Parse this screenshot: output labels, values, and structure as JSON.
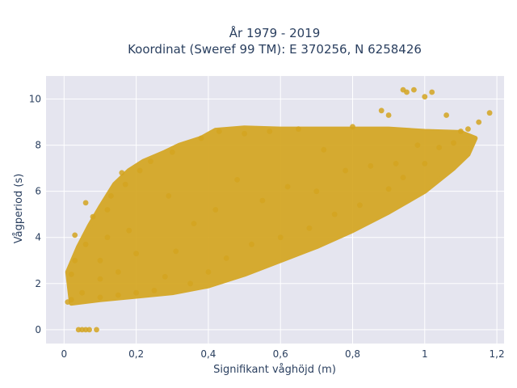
{
  "chart_data": {
    "type": "scatter",
    "title_line1": "År 1979 - 2019",
    "title_line2": "Koordinat (Sweref 99 TM): E 370256, N 6258426",
    "xlabel": "Signifikant våghöjd (m)",
    "ylabel": "Vågperiod (s)",
    "xlim": [
      -0.05,
      1.22
    ],
    "ylim": [
      -0.6,
      11.0
    ],
    "xticks": [
      "0",
      "0,2",
      "0,4",
      "0,6",
      "0,8",
      "1",
      "1,2"
    ],
    "yticks": [
      "0",
      "2",
      "4",
      "6",
      "8",
      "10"
    ],
    "grid": true,
    "marker_color": "#D4A520",
    "plot_bg": "#E5E5EF",
    "series": [
      {
        "values": [
          [
            0.04,
            0.0
          ],
          [
            0.05,
            0.0
          ],
          [
            0.06,
            0.0
          ],
          [
            0.07,
            0.0
          ],
          [
            0.09,
            0.0
          ],
          [
            0.01,
            1.2
          ],
          [
            0.02,
            1.3
          ],
          [
            0.02,
            2.4
          ],
          [
            0.03,
            3.0
          ],
          [
            0.03,
            4.1
          ],
          [
            0.05,
            1.6
          ],
          [
            0.06,
            3.7
          ],
          [
            0.08,
            4.9
          ],
          [
            0.06,
            5.5
          ],
          [
            0.1,
            1.4
          ],
          [
            0.1,
            2.2
          ],
          [
            0.1,
            3.0
          ],
          [
            0.12,
            5.2
          ],
          [
            0.13,
            5.8
          ],
          [
            0.12,
            4.0
          ],
          [
            0.15,
            1.5
          ],
          [
            0.15,
            2.5
          ],
          [
            0.16,
            6.8
          ],
          [
            0.17,
            6.3
          ],
          [
            0.18,
            4.3
          ],
          [
            0.2,
            1.6
          ],
          [
            0.2,
            3.3
          ],
          [
            0.21,
            6.9
          ],
          [
            0.24,
            7.3
          ],
          [
            0.25,
            1.7
          ],
          [
            0.28,
            2.3
          ],
          [
            0.29,
            5.8
          ],
          [
            0.3,
            7.7
          ],
          [
            0.31,
            3.4
          ],
          [
            0.35,
            2.0
          ],
          [
            0.36,
            4.6
          ],
          [
            0.38,
            8.3
          ],
          [
            0.4,
            2.5
          ],
          [
            0.42,
            5.2
          ],
          [
            0.43,
            8.6
          ],
          [
            0.45,
            3.1
          ],
          [
            0.48,
            6.5
          ],
          [
            0.5,
            8.5
          ],
          [
            0.52,
            3.7
          ],
          [
            0.55,
            5.6
          ],
          [
            0.57,
            8.6
          ],
          [
            0.6,
            4.0
          ],
          [
            0.62,
            6.2
          ],
          [
            0.65,
            8.7
          ],
          [
            0.68,
            4.4
          ],
          [
            0.7,
            6.0
          ],
          [
            0.72,
            7.8
          ],
          [
            0.75,
            5.0
          ],
          [
            0.78,
            6.9
          ],
          [
            0.8,
            8.8
          ],
          [
            0.82,
            5.4
          ],
          [
            0.85,
            7.1
          ],
          [
            0.88,
            9.5
          ],
          [
            0.9,
            6.1
          ],
          [
            0.9,
            9.3
          ],
          [
            0.92,
            7.2
          ],
          [
            0.94,
            6.6
          ],
          [
            0.94,
            10.4
          ],
          [
            0.95,
            10.3
          ],
          [
            0.97,
            10.4
          ],
          [
            0.98,
            8.0
          ],
          [
            1.0,
            7.2
          ],
          [
            1.0,
            10.1
          ],
          [
            1.02,
            10.3
          ],
          [
            1.04,
            7.9
          ],
          [
            1.06,
            9.3
          ],
          [
            1.08,
            8.1
          ],
          [
            1.1,
            8.6
          ],
          [
            1.12,
            8.7
          ],
          [
            1.15,
            9.0
          ],
          [
            1.18,
            9.4
          ]
        ]
      }
    ]
  }
}
